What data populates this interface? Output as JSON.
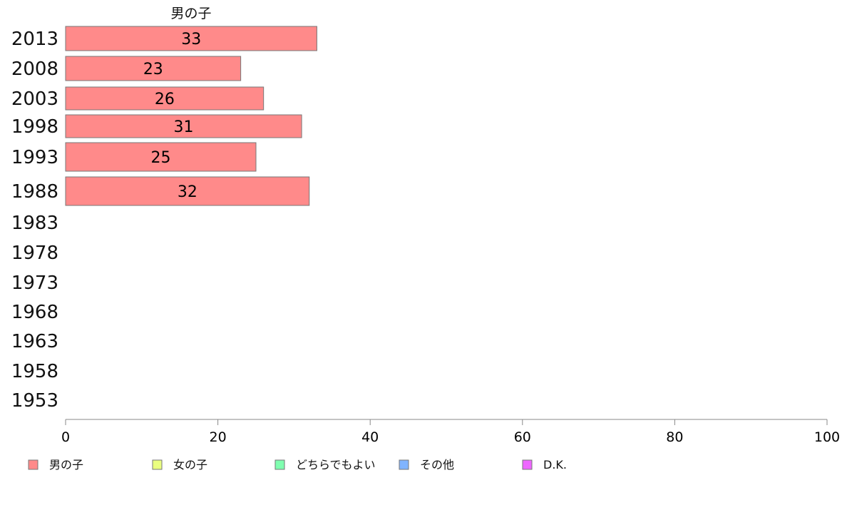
{
  "chart_data": {
    "type": "bar",
    "orientation": "horizontal",
    "title": "男の子",
    "categories": [
      "2013",
      "2008",
      "2003",
      "1998",
      "1993",
      "1988",
      "1983",
      "1978",
      "1973",
      "1968",
      "1963",
      "1958",
      "1953"
    ],
    "series": [
      {
        "name": "男の子",
        "color": "#ff8a8a",
        "values": [
          33,
          23,
          26,
          31,
          25,
          32,
          null,
          null,
          null,
          null,
          null,
          null,
          null
        ]
      }
    ],
    "xlim": [
      0,
      100
    ],
    "xticks": [
      0,
      20,
      40,
      60,
      80,
      100
    ],
    "grid": false,
    "legend": {
      "placement": "bottom",
      "items": [
        {
          "label": "男の子",
          "color": "#ff8a8a"
        },
        {
          "label": "女の子",
          "color": "#eaff80"
        },
        {
          "label": "どちらでもよい",
          "color": "#80ffb0"
        },
        {
          "label": "その他",
          "color": "#80b4ff"
        },
        {
          "label": "D.K.",
          "color": "#ee66ff"
        }
      ]
    }
  }
}
